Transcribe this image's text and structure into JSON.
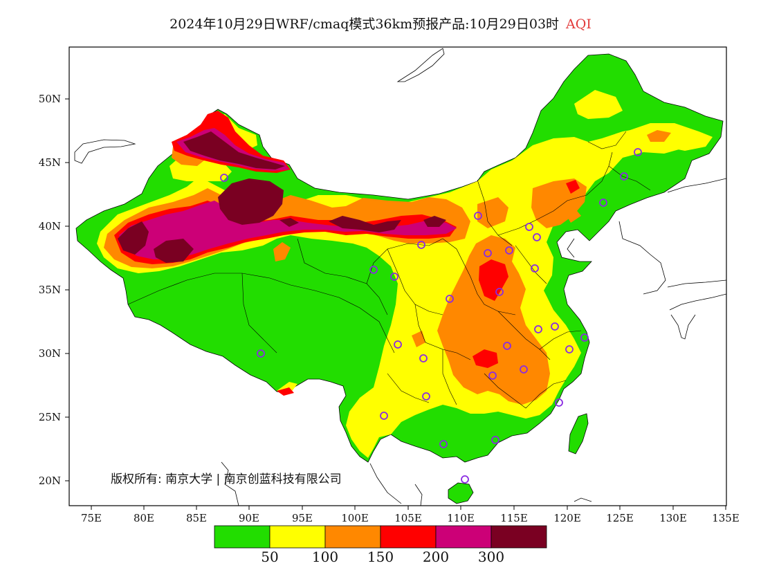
{
  "title": {
    "main": "2024年10月29日WRF/cmaq模式36km预报产品:10月29日03时",
    "variable": "AQI"
  },
  "axes": {
    "lat_labels": [
      "50N",
      "45N",
      "40N",
      "35N",
      "30N",
      "25N",
      "20N"
    ],
    "lon_labels": [
      "75E",
      "80E",
      "85E",
      "90E",
      "95E",
      "100E",
      "105E",
      "110E",
      "115E",
      "120E",
      "125E",
      "130E",
      "135E"
    ],
    "lon_range": [
      73,
      135
    ],
    "lat_range": [
      18,
      54
    ]
  },
  "copyright": "版权所有: 南京大学 | 南京创蓝科技有限公司",
  "legend": {
    "colors": [
      "#22dd00",
      "#ffff00",
      "#ff8800",
      "#ff0000",
      "#cc0077",
      "#7a0022"
    ],
    "labels": [
      "50",
      "100",
      "150",
      "200",
      "300"
    ]
  },
  "stations_count_note": ""
}
